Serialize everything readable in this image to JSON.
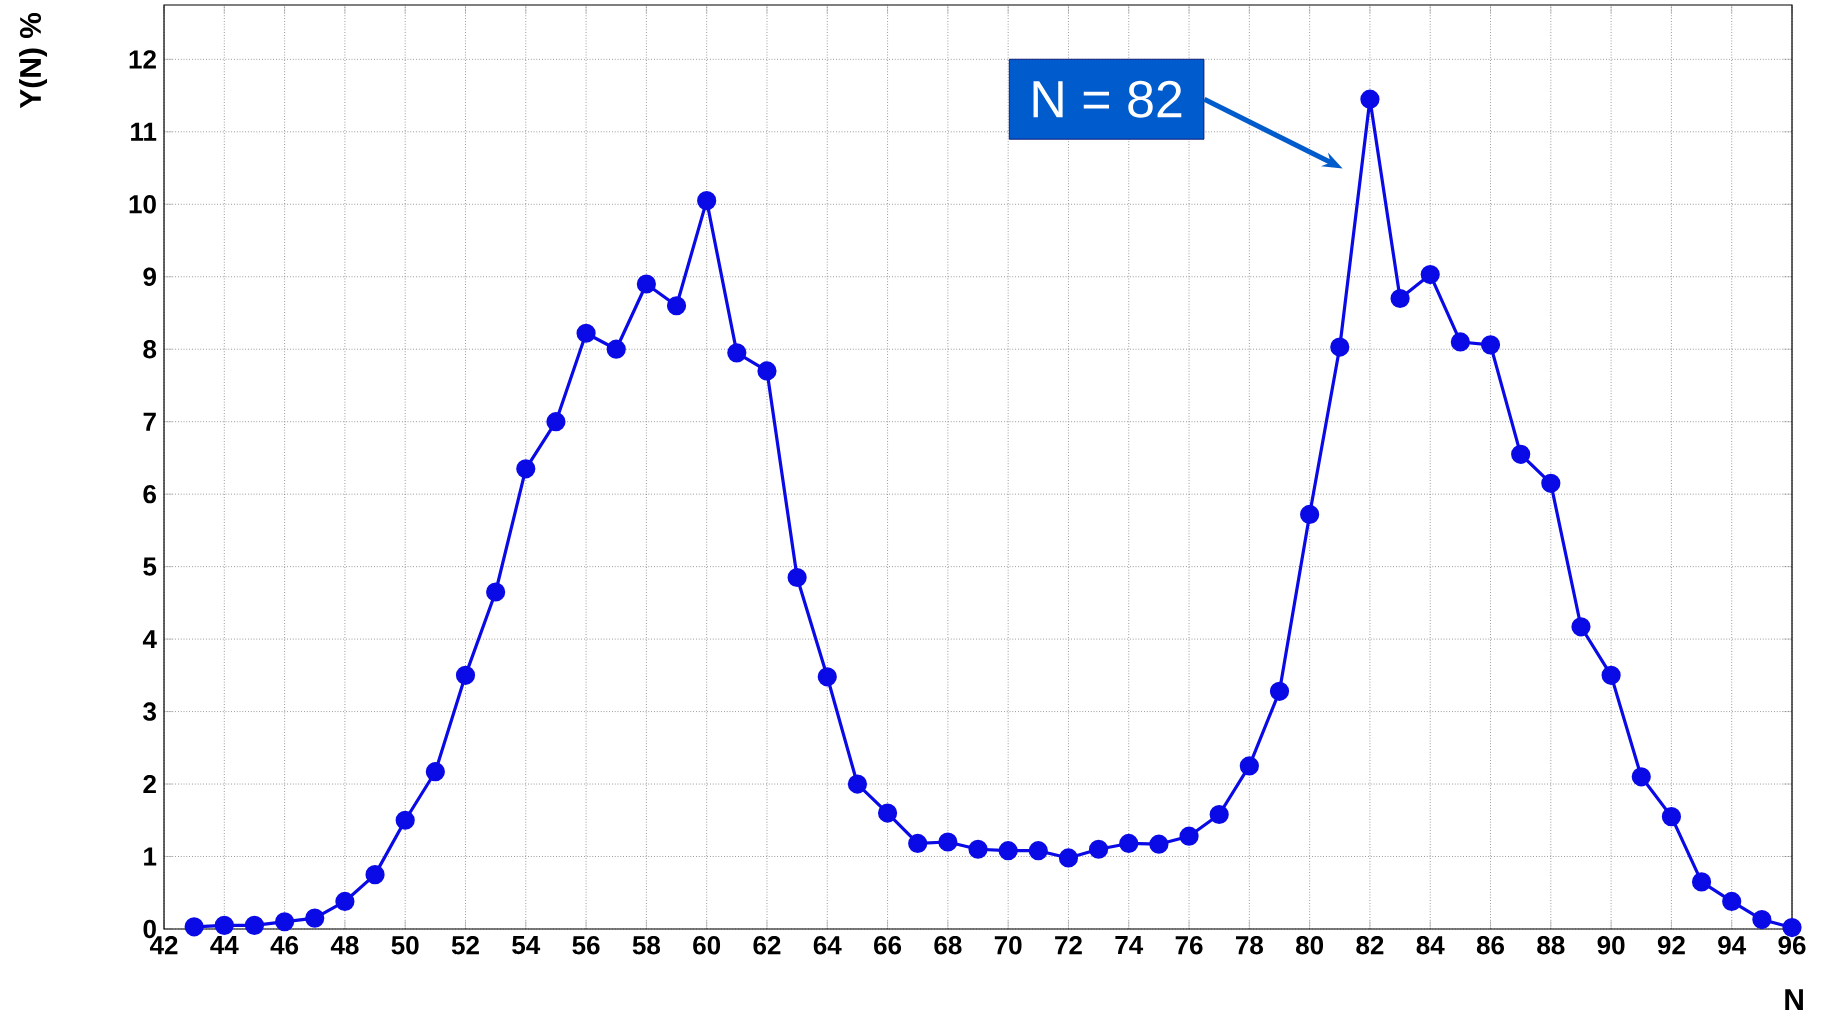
{
  "chart_data": {
    "type": "line",
    "xlabel": "N",
    "ylabel": "Y(N) %",
    "x": [
      43,
      44,
      45,
      46,
      47,
      48,
      49,
      50,
      51,
      52,
      53,
      54,
      55,
      56,
      57,
      58,
      59,
      60,
      61,
      62,
      63,
      64,
      65,
      66,
      67,
      68,
      69,
      70,
      71,
      72,
      73,
      74,
      75,
      76,
      77,
      78,
      79,
      80,
      81,
      82,
      83,
      84,
      85,
      86,
      87,
      88,
      89,
      90,
      91,
      92,
      93,
      94,
      95,
      96
    ],
    "series": [
      {
        "color": "#0a0ae6",
        "values": [
          0.03,
          0.05,
          0.05,
          0.1,
          0.15,
          0.38,
          0.75,
          1.5,
          2.17,
          3.5,
          4.65,
          6.35,
          7.0,
          8.22,
          8.0,
          8.9,
          8.6,
          10.05,
          7.95,
          7.7,
          4.85,
          3.48,
          2.0,
          1.6,
          1.18,
          1.2,
          1.1,
          1.08,
          1.08,
          0.98,
          1.1,
          1.18,
          1.17,
          1.28,
          1.58,
          2.25,
          3.28,
          5.72,
          8.03,
          11.45,
          8.7,
          9.03,
          8.1,
          8.06,
          6.55,
          6.15,
          4.17,
          3.5,
          2.1,
          1.55,
          0.65,
          0.38,
          0.13,
          0.02
        ]
      }
    ],
    "xlim": [
      42,
      96
    ],
    "ylim": [
      0,
      12.75
    ],
    "xticks": [
      42,
      44,
      46,
      48,
      50,
      52,
      54,
      56,
      58,
      60,
      62,
      64,
      66,
      68,
      70,
      72,
      74,
      76,
      78,
      80,
      82,
      84,
      86,
      88,
      90,
      92,
      94,
      96
    ],
    "yticks": [
      0,
      1,
      2,
      3,
      4,
      5,
      6,
      7,
      8,
      9,
      10,
      11,
      12
    ],
    "grid": true,
    "marker": "circle",
    "line_style": "solid",
    "annotations": [
      "N = 82"
    ]
  }
}
